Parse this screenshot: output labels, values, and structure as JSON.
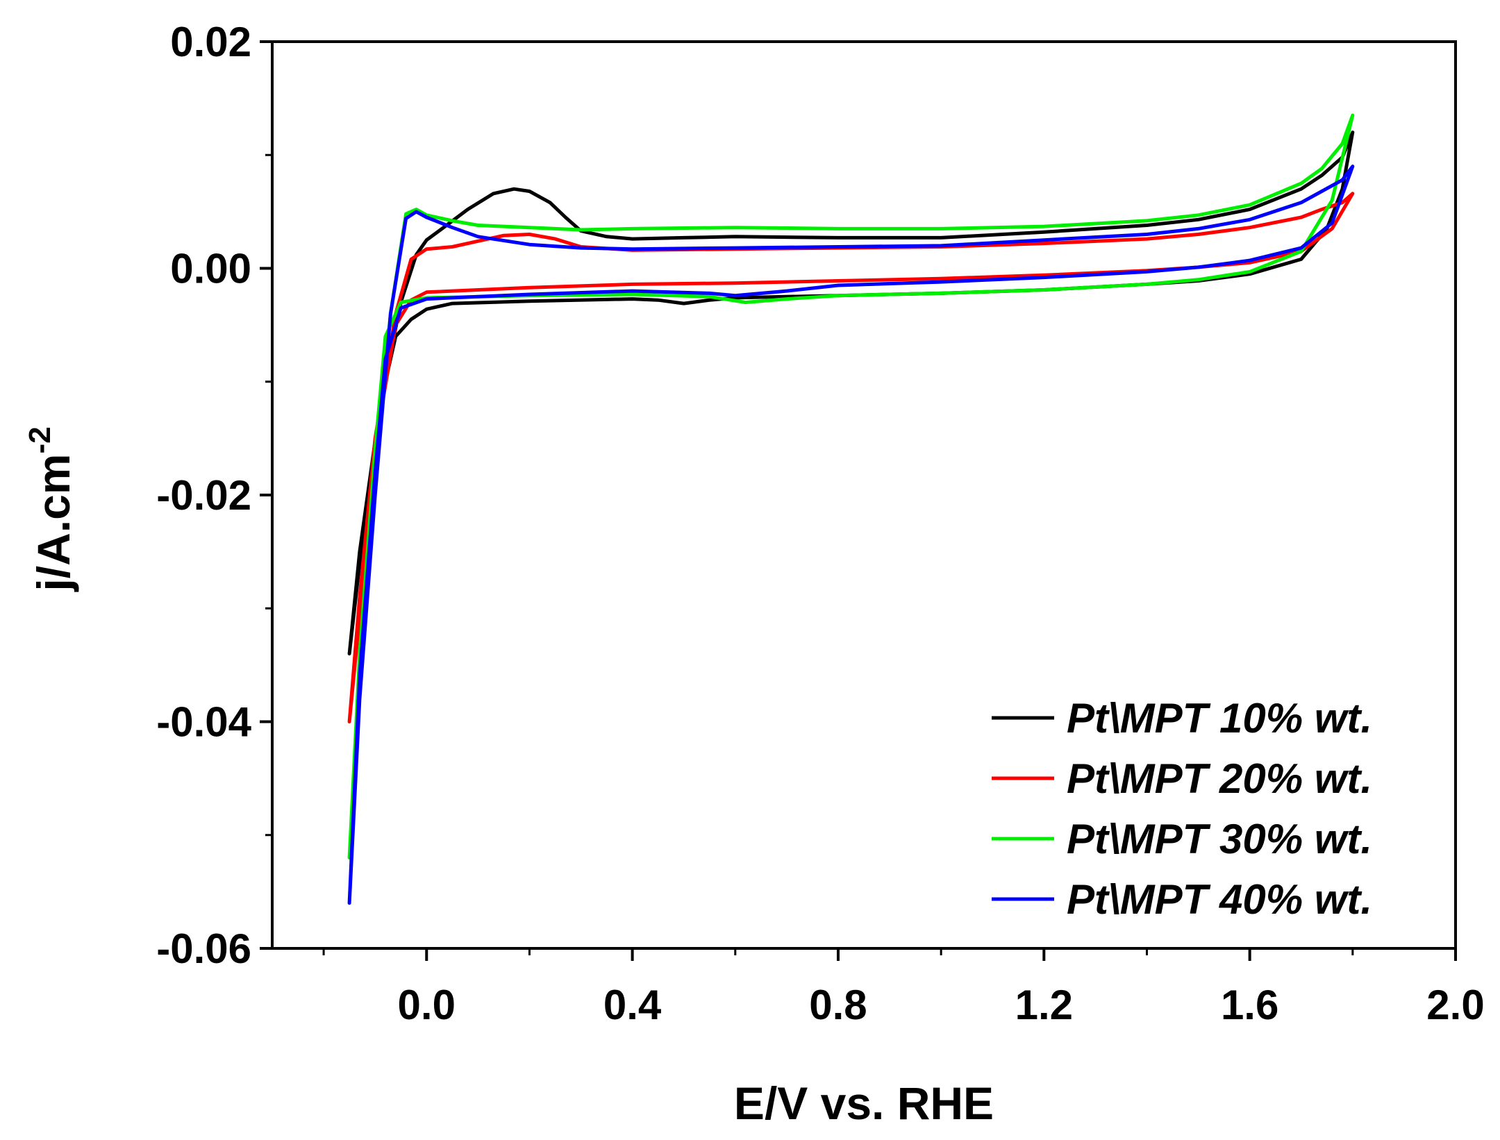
{
  "chart_data": {
    "type": "line",
    "title": "",
    "xlabel": "E/V vs. RHE",
    "ylabel": "j/A.cm",
    "ylabel_superscript": "-2",
    "xlim": [
      -0.3,
      2.0
    ],
    "ylim": [
      -0.06,
      0.02
    ],
    "grid": false,
    "legend_position": "bottom-right",
    "x_ticks": [
      {
        "value": 0.0,
        "label": "0.0"
      },
      {
        "value": 0.4,
        "label": "0.4"
      },
      {
        "value": 0.8,
        "label": "0.8"
      },
      {
        "value": 1.2,
        "label": "1.2"
      },
      {
        "value": 1.6,
        "label": "1.6"
      },
      {
        "value": 2.0,
        "label": "2.0"
      }
    ],
    "x_minor_ticks": [
      -0.2,
      0.2,
      0.6,
      1.0,
      1.4,
      1.8
    ],
    "y_ticks": [
      {
        "value": 0.02,
        "label": "0.02"
      },
      {
        "value": 0.0,
        "label": "0.00"
      },
      {
        "value": -0.02,
        "label": "-0.02"
      },
      {
        "value": -0.04,
        "label": "-0.04"
      },
      {
        "value": -0.06,
        "label": "-0.06"
      }
    ],
    "y_minor_ticks": [
      0.01,
      -0.01,
      -0.03,
      -0.05
    ],
    "series": [
      {
        "name": "Pt\\MPT 10% wt.",
        "color": "#000000",
        "points": [
          [
            -0.15,
            -0.034
          ],
          [
            -0.12,
            -0.022
          ],
          [
            -0.09,
            -0.012
          ],
          [
            -0.06,
            -0.006
          ],
          [
            -0.03,
            -0.0045
          ],
          [
            0.0,
            -0.0036
          ],
          [
            0.05,
            -0.0031
          ],
          [
            0.2,
            -0.0029
          ],
          [
            0.4,
            -0.0027
          ],
          [
            0.45,
            -0.0028
          ],
          [
            0.5,
            -0.0031
          ],
          [
            0.55,
            -0.0028
          ],
          [
            0.6,
            -0.0026
          ],
          [
            0.8,
            -0.0024
          ],
          [
            1.0,
            -0.0022
          ],
          [
            1.2,
            -0.0019
          ],
          [
            1.4,
            -0.0014
          ],
          [
            1.5,
            -0.0011
          ],
          [
            1.6,
            -0.0005
          ],
          [
            1.7,
            0.0008
          ],
          [
            1.75,
            0.0035
          ],
          [
            1.78,
            0.007
          ],
          [
            1.8,
            0.012
          ],
          [
            1.78,
            0.0098
          ],
          [
            1.74,
            0.0082
          ],
          [
            1.7,
            0.007
          ],
          [
            1.6,
            0.0052
          ],
          [
            1.5,
            0.0043
          ],
          [
            1.4,
            0.0038
          ],
          [
            1.2,
            0.0032
          ],
          [
            1.0,
            0.0027
          ],
          [
            0.8,
            0.0027
          ],
          [
            0.6,
            0.0028
          ],
          [
            0.5,
            0.0027
          ],
          [
            0.4,
            0.0026
          ],
          [
            0.35,
            0.0028
          ],
          [
            0.3,
            0.0033
          ],
          [
            0.27,
            0.0045
          ],
          [
            0.24,
            0.0058
          ],
          [
            0.2,
            0.0068
          ],
          [
            0.17,
            0.007
          ],
          [
            0.13,
            0.0066
          ],
          [
            0.08,
            0.0052
          ],
          [
            0.03,
            0.0035
          ],
          [
            0.0,
            0.0025
          ],
          [
            -0.02,
            0.0012
          ],
          [
            -0.05,
            -0.003
          ],
          [
            -0.09,
            -0.012
          ],
          [
            -0.13,
            -0.025
          ],
          [
            -0.15,
            -0.034
          ]
        ]
      },
      {
        "name": "Pt\\MPT 20% wt.",
        "color": "#ff0000",
        "points": [
          [
            -0.15,
            -0.04
          ],
          [
            -0.12,
            -0.026
          ],
          [
            -0.09,
            -0.013
          ],
          [
            -0.06,
            -0.005
          ],
          [
            -0.03,
            -0.0028
          ],
          [
            0.0,
            -0.0021
          ],
          [
            0.2,
            -0.0017
          ],
          [
            0.4,
            -0.0014
          ],
          [
            0.6,
            -0.0013
          ],
          [
            0.8,
            -0.0011
          ],
          [
            1.0,
            -0.0009
          ],
          [
            1.2,
            -0.0006
          ],
          [
            1.4,
            -0.0002
          ],
          [
            1.5,
            0.0001
          ],
          [
            1.6,
            0.0005
          ],
          [
            1.7,
            0.0015
          ],
          [
            1.76,
            0.0035
          ],
          [
            1.8,
            0.0066
          ],
          [
            1.78,
            0.0058
          ],
          [
            1.74,
            0.0052
          ],
          [
            1.7,
            0.0045
          ],
          [
            1.6,
            0.0036
          ],
          [
            1.5,
            0.003
          ],
          [
            1.4,
            0.0026
          ],
          [
            1.2,
            0.0022
          ],
          [
            1.0,
            0.0019
          ],
          [
            0.8,
            0.0018
          ],
          [
            0.6,
            0.0017
          ],
          [
            0.4,
            0.0016
          ],
          [
            0.3,
            0.0019
          ],
          [
            0.25,
            0.0026
          ],
          [
            0.2,
            0.003
          ],
          [
            0.15,
            0.0029
          ],
          [
            0.1,
            0.0024
          ],
          [
            0.05,
            0.0019
          ],
          [
            0.0,
            0.0017
          ],
          [
            -0.03,
            0.0008
          ],
          [
            -0.06,
            -0.004
          ],
          [
            -0.1,
            -0.015
          ],
          [
            -0.13,
            -0.029
          ],
          [
            -0.15,
            -0.04
          ]
        ]
      },
      {
        "name": "Pt\\MPT 30% wt.",
        "color": "#00ee00",
        "points": [
          [
            -0.15,
            -0.052
          ],
          [
            -0.13,
            -0.034
          ],
          [
            -0.1,
            -0.016
          ],
          [
            -0.08,
            -0.006
          ],
          [
            -0.05,
            -0.003
          ],
          [
            0.0,
            -0.0026
          ],
          [
            0.2,
            -0.0024
          ],
          [
            0.4,
            -0.0023
          ],
          [
            0.55,
            -0.0025
          ],
          [
            0.62,
            -0.003
          ],
          [
            0.7,
            -0.0027
          ],
          [
            0.8,
            -0.0024
          ],
          [
            1.0,
            -0.0022
          ],
          [
            1.2,
            -0.0019
          ],
          [
            1.4,
            -0.0014
          ],
          [
            1.5,
            -0.001
          ],
          [
            1.6,
            -0.0003
          ],
          [
            1.7,
            0.0015
          ],
          [
            1.76,
            0.006
          ],
          [
            1.8,
            0.0135
          ],
          [
            1.78,
            0.011
          ],
          [
            1.74,
            0.0088
          ],
          [
            1.7,
            0.0075
          ],
          [
            1.6,
            0.0056
          ],
          [
            1.5,
            0.0047
          ],
          [
            1.4,
            0.0042
          ],
          [
            1.2,
            0.0037
          ],
          [
            1.0,
            0.0035
          ],
          [
            0.8,
            0.0035
          ],
          [
            0.6,
            0.0036
          ],
          [
            0.4,
            0.0035
          ],
          [
            0.3,
            0.0034
          ],
          [
            0.2,
            0.0036
          ],
          [
            0.1,
            0.0038
          ],
          [
            0.05,
            0.0042
          ],
          [
            0.0,
            0.0047
          ],
          [
            -0.02,
            0.0052
          ],
          [
            -0.04,
            0.0048
          ],
          [
            -0.07,
            -0.004
          ],
          [
            -0.1,
            -0.018
          ],
          [
            -0.13,
            -0.035
          ],
          [
            -0.15,
            -0.052
          ]
        ]
      },
      {
        "name": "Pt\\MPT 40% wt.",
        "color": "#0000ff",
        "points": [
          [
            -0.15,
            -0.056
          ],
          [
            -0.13,
            -0.036
          ],
          [
            -0.1,
            -0.018
          ],
          [
            -0.08,
            -0.008
          ],
          [
            -0.05,
            -0.0035
          ],
          [
            0.0,
            -0.0027
          ],
          [
            0.2,
            -0.0023
          ],
          [
            0.4,
            -0.002
          ],
          [
            0.55,
            -0.0022
          ],
          [
            0.6,
            -0.0024
          ],
          [
            0.7,
            -0.002
          ],
          [
            0.8,
            -0.0015
          ],
          [
            1.0,
            -0.0012
          ],
          [
            1.2,
            -0.0008
          ],
          [
            1.4,
            -0.0003
          ],
          [
            1.5,
            0.0001
          ],
          [
            1.6,
            0.0007
          ],
          [
            1.7,
            0.0018
          ],
          [
            1.76,
            0.004
          ],
          [
            1.8,
            0.009
          ],
          [
            1.78,
            0.0078
          ],
          [
            1.74,
            0.0068
          ],
          [
            1.7,
            0.0058
          ],
          [
            1.6,
            0.0043
          ],
          [
            1.5,
            0.0035
          ],
          [
            1.4,
            0.003
          ],
          [
            1.2,
            0.0025
          ],
          [
            1.0,
            0.002
          ],
          [
            0.8,
            0.0019
          ],
          [
            0.6,
            0.0018
          ],
          [
            0.4,
            0.0017
          ],
          [
            0.3,
            0.0018
          ],
          [
            0.2,
            0.0021
          ],
          [
            0.1,
            0.0028
          ],
          [
            0.05,
            0.0036
          ],
          [
            0.0,
            0.0045
          ],
          [
            -0.02,
            0.005
          ],
          [
            -0.04,
            0.0044
          ],
          [
            -0.07,
            -0.004
          ],
          [
            -0.1,
            -0.02
          ],
          [
            -0.13,
            -0.038
          ],
          [
            -0.15,
            -0.056
          ]
        ]
      }
    ]
  }
}
